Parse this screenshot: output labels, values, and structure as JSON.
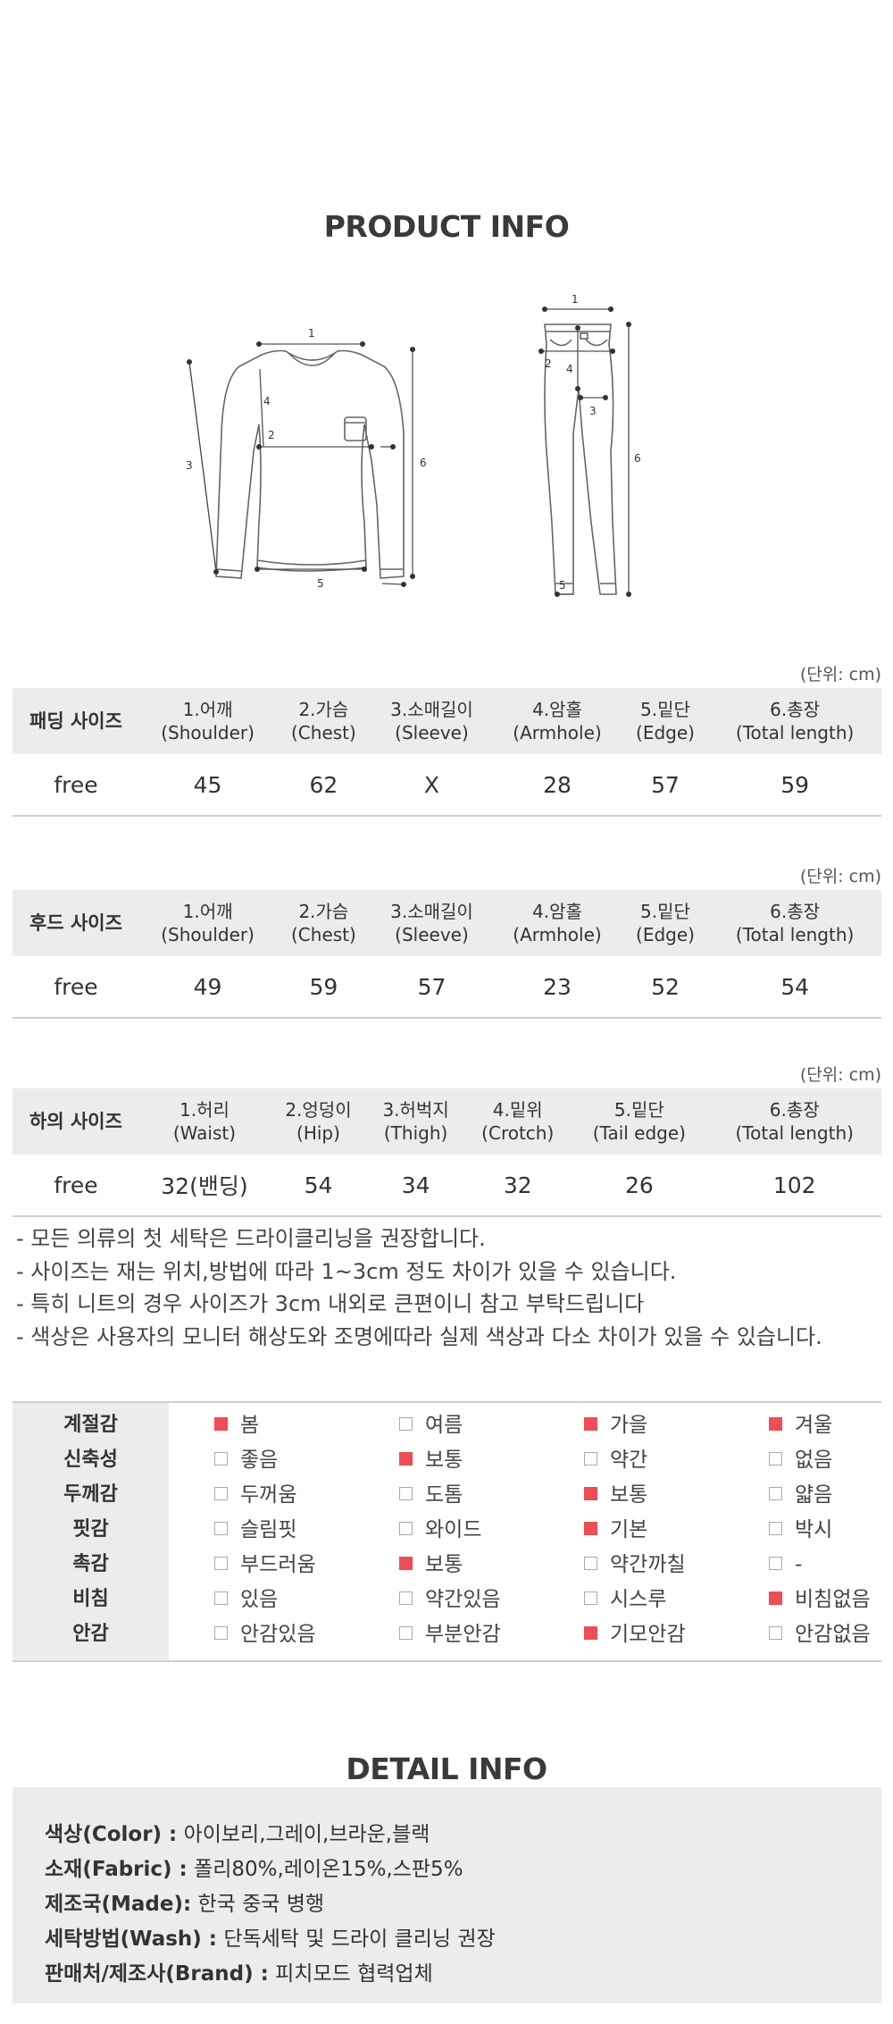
{
  "product_info_title": "PRODUCT INFO",
  "diagram": {
    "top_labels": [
      "1",
      "2",
      "3",
      "4",
      "5",
      "6"
    ],
    "pants_labels": [
      "1",
      "2",
      "3",
      "4",
      "5",
      "6"
    ]
  },
  "unit_label": "(단위: cm)",
  "padding_table": {
    "headers": [
      {
        "line1": "패딩 사이즈",
        "line2": ""
      },
      {
        "line1": "1.어깨",
        "line2": "(Shoulder)"
      },
      {
        "line1": "2.가슴",
        "line2": "(Chest)"
      },
      {
        "line1": "3.소매길이",
        "line2": "(Sleeve)"
      },
      {
        "line1": "4.암홀",
        "line2": "(Armhole)"
      },
      {
        "line1": "5.밑단",
        "line2": "(Edge)"
      },
      {
        "line1": "6.총장",
        "line2": "(Total length)"
      }
    ],
    "row": [
      "free",
      "45",
      "62",
      "X",
      "28",
      "57",
      "59"
    ]
  },
  "hood_table": {
    "headers": [
      {
        "line1": "후드 사이즈",
        "line2": ""
      },
      {
        "line1": "1.어깨",
        "line2": "(Shoulder)"
      },
      {
        "line1": "2.가슴",
        "line2": "(Chest)"
      },
      {
        "line1": "3.소매길이",
        "line2": "(Sleeve)"
      },
      {
        "line1": "4.암홀",
        "line2": "(Armhole)"
      },
      {
        "line1": "5.밑단",
        "line2": "(Edge)"
      },
      {
        "line1": "6.총장",
        "line2": "(Total length)"
      }
    ],
    "row": [
      "free",
      "49",
      "59",
      "57",
      "23",
      "52",
      "54"
    ]
  },
  "bottom_table": {
    "headers": [
      {
        "line1": "하의 사이즈",
        "line2": ""
      },
      {
        "line1": "1.허리",
        "line2": "(Waist)"
      },
      {
        "line1": "2.엉덩이",
        "line2": "(Hip)"
      },
      {
        "line1": "3.허벅지",
        "line2": "(Thigh)"
      },
      {
        "line1": "4.밑위",
        "line2": "(Crotch)"
      },
      {
        "line1": "5.밑단",
        "line2": "(Tail edge)"
      },
      {
        "line1": "6.총장",
        "line2": "(Total length)"
      }
    ],
    "row": [
      "free",
      "32(밴딩)",
      "54",
      "34",
      "32",
      "26",
      "102"
    ]
  },
  "notes": [
    "- 모든 의류의 첫 세탁은 드라이클리닝을 권장합니다.",
    "- 사이즈는 재는 위치,방법에 따라 1~3cm 정도 차이가 있을 수 있습니다.",
    "- 특히 니트의 경우 사이즈가 3cm 내외로 큰편이니 참고 부탁드립니다",
    "- 색상은 사용자의 모니터 해상도와 조명에따라 실제 색상과 다소 차이가 있을 수 있습니다."
  ],
  "features": [
    {
      "label": "계절감",
      "options": [
        {
          "text": "봄",
          "checked": true
        },
        {
          "text": "여름",
          "checked": false
        },
        {
          "text": "가을",
          "checked": true
        },
        {
          "text": "겨울",
          "checked": true
        }
      ]
    },
    {
      "label": "신축성",
      "options": [
        {
          "text": "좋음",
          "checked": false
        },
        {
          "text": "보통",
          "checked": true
        },
        {
          "text": "약간",
          "checked": false
        },
        {
          "text": "없음",
          "checked": false
        }
      ]
    },
    {
      "label": "두께감",
      "options": [
        {
          "text": "두꺼움",
          "checked": false
        },
        {
          "text": "도톰",
          "checked": false
        },
        {
          "text": "보통",
          "checked": true
        },
        {
          "text": "얇음",
          "checked": false
        }
      ]
    },
    {
      "label": "핏감",
      "options": [
        {
          "text": "슬림핏",
          "checked": false
        },
        {
          "text": "와이드",
          "checked": false
        },
        {
          "text": "기본",
          "checked": true
        },
        {
          "text": "박시",
          "checked": false
        }
      ]
    },
    {
      "label": "촉감",
      "options": [
        {
          "text": "부드러움",
          "checked": false
        },
        {
          "text": "보통",
          "checked": true
        },
        {
          "text": "약간까칠",
          "checked": false
        },
        {
          "text": "-",
          "checked": false
        }
      ]
    },
    {
      "label": "비침",
      "options": [
        {
          "text": "있음",
          "checked": false
        },
        {
          "text": "약간있음",
          "checked": false
        },
        {
          "text": "시스루",
          "checked": false
        },
        {
          "text": "비침없음",
          "checked": true
        }
      ]
    },
    {
      "label": "안감",
      "options": [
        {
          "text": "안감있음",
          "checked": false
        },
        {
          "text": "부분안감",
          "checked": false
        },
        {
          "text": "기모안감",
          "checked": true
        },
        {
          "text": "안감없음",
          "checked": false
        }
      ]
    }
  ],
  "detail_info_title": "DETAIL INFO",
  "detail": [
    {
      "key": "색상(Color) :",
      "value": "아이보리,그레이,브라운,블랙"
    },
    {
      "key": "소재(Fabric) :",
      "value": "폴리80%,레이온15%,스판5%"
    },
    {
      "key": "제조국(Made):",
      "value": "한국 중국 병행"
    },
    {
      "key": "세탁방법(Wash) :",
      "value": "단독세탁 및 드라이 클리닝 권장"
    },
    {
      "key": "판매처/제조사(Brand) :",
      "value": "피치모드 협력업체"
    }
  ],
  "colors": {
    "accent": "#ee4d55",
    "header_bg": "#ececec"
  }
}
